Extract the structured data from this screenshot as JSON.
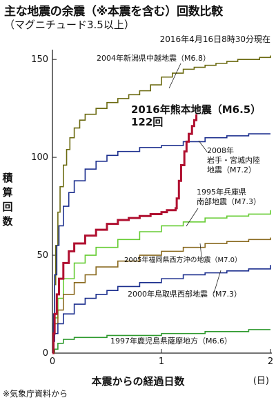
{
  "title": "主な地震の余震（※本震を含む）回数比較",
  "subtitle": "（マグニチュード3.5以上）",
  "as_of": "2016年4月16日8時30分現在",
  "source": "※気象庁資料から",
  "chart_data": {
    "type": "line",
    "xlabel": "本震からの経過日数",
    "x_unit": "(日)",
    "ylabel": "積算回数",
    "xlim": [
      0,
      2
    ],
    "ylim": [
      0,
      155
    ],
    "xticks": [
      0,
      1,
      2
    ],
    "yticks": [
      0,
      50,
      100,
      150
    ],
    "grid": false,
    "series": [
      {
        "name": "2004年新潟県中越地震（M6.8）",
        "color": "#6b6a10",
        "width": 1.6,
        "x": [
          0,
          0.01,
          0.02,
          0.03,
          0.05,
          0.07,
          0.1,
          0.13,
          0.16,
          0.2,
          0.25,
          0.3,
          0.4,
          0.5,
          0.6,
          0.7,
          0.8,
          0.9,
          1.0,
          1.1,
          1.2,
          1.3,
          1.4,
          1.5,
          1.6,
          1.7,
          1.8,
          1.9,
          2.0
        ],
        "y": [
          0,
          15,
          35,
          55,
          72,
          85,
          96,
          104,
          110,
          115,
          119,
          122,
          125,
          128,
          130,
          132,
          134,
          137,
          141,
          143,
          145,
          146,
          147,
          148,
          149,
          150,
          150,
          151,
          152
        ]
      },
      {
        "name": "2016年熊本地震（M6.5）",
        "label_extra": "122回",
        "color": "#b01030",
        "width": 3,
        "x": [
          0,
          0.01,
          0.02,
          0.04,
          0.06,
          0.1,
          0.15,
          0.2,
          0.3,
          0.4,
          0.5,
          0.6,
          0.7,
          0.8,
          0.9,
          1.0,
          1.05,
          1.1,
          1.13,
          1.14,
          1.16,
          1.18,
          1.21,
          1.23,
          1.25,
          1.28,
          1.3,
          1.32
        ],
        "y": [
          0,
          10,
          20,
          30,
          38,
          46,
          52,
          56,
          60,
          63,
          66,
          68,
          69,
          70,
          71,
          72,
          73,
          73,
          74,
          79,
          88,
          96,
          103,
          108,
          112,
          116,
          119,
          122
        ]
      },
      {
        "name": "2008年岩手・宮城内陸地震（M7.2）",
        "color": "#1c2f8e",
        "width": 1.6,
        "x": [
          0,
          0.01,
          0.02,
          0.04,
          0.06,
          0.1,
          0.15,
          0.2,
          0.3,
          0.4,
          0.5,
          0.6,
          0.8,
          1.0,
          1.2,
          1.4,
          1.6,
          1.8,
          2.0
        ],
        "y": [
          0,
          20,
          40,
          55,
          65,
          75,
          82,
          88,
          94,
          98,
          101,
          103,
          105,
          106,
          108,
          110,
          111,
          112,
          112
        ]
      },
      {
        "name": "1995年兵庫県南部地震（M7.3）",
        "color": "#66cc33",
        "width": 1.6,
        "x": [
          0,
          0.01,
          0.02,
          0.05,
          0.1,
          0.2,
          0.3,
          0.4,
          0.6,
          0.8,
          1.0,
          1.2,
          1.4,
          1.6,
          1.8,
          2.0
        ],
        "y": [
          0,
          10,
          18,
          28,
          38,
          46,
          50,
          54,
          58,
          62,
          65,
          67,
          69,
          70,
          71,
          73
        ]
      },
      {
        "name": "2005年福岡県西方沖の地震（M7.0）",
        "color": "#8a6a20",
        "width": 1.6,
        "x": [
          0,
          0.01,
          0.02,
          0.05,
          0.1,
          0.2,
          0.3,
          0.4,
          0.6,
          0.8,
          1.0,
          1.2,
          1.4,
          1.6,
          1.8,
          2.0
        ],
        "y": [
          0,
          8,
          15,
          22,
          30,
          36,
          40,
          44,
          47,
          50,
          52,
          54,
          56,
          57,
          58,
          59
        ]
      },
      {
        "name": "2000年鳥取県西部地震（M7.3）",
        "color": "#1c2f8e",
        "width": 1.6,
        "x": [
          0,
          0.01,
          0.02,
          0.05,
          0.1,
          0.2,
          0.3,
          0.4,
          0.5,
          0.6,
          0.8,
          1.0,
          1.2,
          1.4,
          1.6,
          1.8,
          2.0
        ],
        "y": [
          0,
          6,
          10,
          15,
          20,
          25,
          28,
          30,
          32,
          34,
          36,
          38,
          40,
          41,
          42,
          43,
          45
        ]
      },
      {
        "name": "1997年鹿児島県薩摩地方（M6.6）",
        "color": "#2e9a2e",
        "width": 1.6,
        "x": [
          0,
          0.02,
          0.05,
          0.1,
          0.2,
          0.3,
          0.5,
          0.7,
          1.0,
          1.2,
          1.4,
          1.6,
          1.8,
          2.0
        ],
        "y": [
          0,
          2,
          5,
          7,
          8,
          8,
          9,
          9,
          10,
          10,
          11,
          11,
          12,
          12
        ]
      }
    ]
  }
}
